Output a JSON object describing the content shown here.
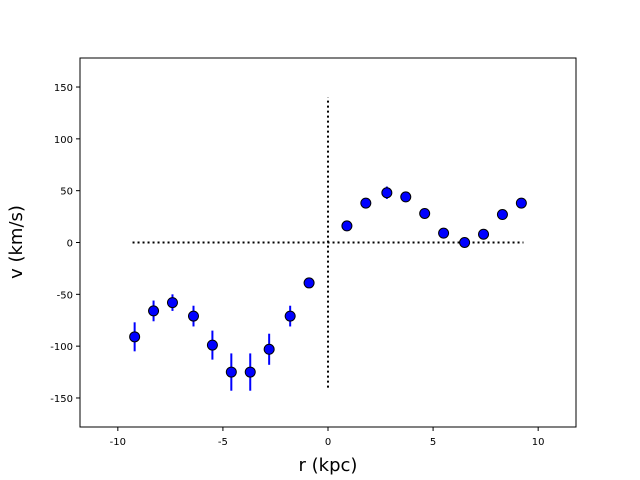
{
  "chart_data": {
    "type": "scatter",
    "title": "",
    "xlabel": "r (kpc)",
    "ylabel": "v (km/s)",
    "xlim": [
      -11.8,
      11.8
    ],
    "ylim": [
      -178,
      178
    ],
    "xticks": [
      -10,
      -5,
      0,
      5,
      10
    ],
    "yticks": [
      -150,
      -100,
      -50,
      0,
      50,
      100,
      150
    ],
    "grid": false,
    "legend": "none",
    "marker_color": "#0000ff",
    "errorbar_color": "#0000ff",
    "guide_line_color": "#000000",
    "points": [
      {
        "x": -9.2,
        "y": -91,
        "err": 14
      },
      {
        "x": -8.3,
        "y": -66,
        "err": 10
      },
      {
        "x": -7.4,
        "y": -58,
        "err": 8
      },
      {
        "x": -6.4,
        "y": -71,
        "err": 10
      },
      {
        "x": -5.5,
        "y": -99,
        "err": 14
      },
      {
        "x": -4.6,
        "y": -125,
        "err": 18
      },
      {
        "x": -3.7,
        "y": -125,
        "err": 18
      },
      {
        "x": -2.8,
        "y": -103,
        "err": 15
      },
      {
        "x": -1.8,
        "y": -71,
        "err": 10
      },
      {
        "x": -0.9,
        "y": -39,
        "err": 4
      },
      {
        "x": 0.9,
        "y": 16,
        "err": 3
      },
      {
        "x": 1.8,
        "y": 38,
        "err": 3
      },
      {
        "x": 2.8,
        "y": 48,
        "err": 6
      },
      {
        "x": 3.7,
        "y": 44,
        "err": 5
      },
      {
        "x": 4.6,
        "y": 28,
        "err": 3
      },
      {
        "x": 5.5,
        "y": 9,
        "err": 3
      },
      {
        "x": 6.5,
        "y": 0,
        "err": 2
      },
      {
        "x": 7.4,
        "y": 8,
        "err": 2
      },
      {
        "x": 8.3,
        "y": 27,
        "err": 3
      },
      {
        "x": 9.2,
        "y": 38,
        "err": 4
      }
    ],
    "guides": {
      "horizontal": {
        "y": 0,
        "x_range": [
          -9.3,
          9.3
        ]
      },
      "vertical": {
        "x": 0,
        "y_range": [
          -140,
          140
        ]
      }
    }
  }
}
